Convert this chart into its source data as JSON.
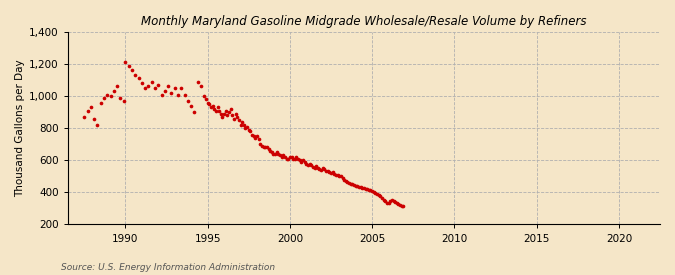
{
  "title": "Monthly Maryland Gasoline Midgrade Wholesale/Resale Volume by Refiners",
  "ylabel": "Thousand Gallons per Day",
  "source": "Source: U.S. Energy Information Administration",
  "background_color": "#f5e6c8",
  "dot_color": "#cc0000",
  "ylim": [
    200,
    1400
  ],
  "yticks": [
    200,
    400,
    600,
    800,
    1000,
    1200,
    1400
  ],
  "xlim": [
    1986.5,
    2022.5
  ],
  "xticks": [
    1990,
    1995,
    2000,
    2005,
    2010,
    2015,
    2020
  ],
  "dot_size": 7,
  "data": [
    [
      1987.5,
      870
    ],
    [
      1987.7,
      910
    ],
    [
      1987.9,
      930
    ],
    [
      1988.1,
      860
    ],
    [
      1988.3,
      820
    ],
    [
      1988.5,
      960
    ],
    [
      1988.7,
      990
    ],
    [
      1988.9,
      1010
    ],
    [
      1989.1,
      1000
    ],
    [
      1989.3,
      1030
    ],
    [
      1989.5,
      1060
    ],
    [
      1989.7,
      990
    ],
    [
      1989.9,
      970
    ],
    [
      1990.0,
      1210
    ],
    [
      1990.2,
      1190
    ],
    [
      1990.4,
      1160
    ],
    [
      1990.6,
      1130
    ],
    [
      1990.8,
      1110
    ],
    [
      1991.0,
      1080
    ],
    [
      1991.2,
      1050
    ],
    [
      1991.4,
      1060
    ],
    [
      1991.6,
      1090
    ],
    [
      1991.8,
      1050
    ],
    [
      1992.0,
      1070
    ],
    [
      1992.2,
      1010
    ],
    [
      1992.4,
      1030
    ],
    [
      1992.6,
      1060
    ],
    [
      1992.8,
      1020
    ],
    [
      1993.0,
      1050
    ],
    [
      1993.2,
      1010
    ],
    [
      1993.4,
      1050
    ],
    [
      1993.6,
      1010
    ],
    [
      1993.8,
      970
    ],
    [
      1994.0,
      940
    ],
    [
      1994.2,
      900
    ],
    [
      1994.4,
      1090
    ],
    [
      1994.6,
      1060
    ],
    [
      1994.8,
      1000
    ],
    [
      1994.9,
      980
    ],
    [
      1995.0,
      960
    ],
    [
      1995.1,
      950
    ],
    [
      1995.2,
      930
    ],
    [
      1995.3,
      940
    ],
    [
      1995.4,
      920
    ],
    [
      1995.5,
      910
    ],
    [
      1995.6,
      930
    ],
    [
      1995.7,
      910
    ],
    [
      1995.8,
      890
    ],
    [
      1995.9,
      870
    ],
    [
      1996.0,
      890
    ],
    [
      1996.1,
      910
    ],
    [
      1996.2,
      880
    ],
    [
      1996.3,
      900
    ],
    [
      1996.4,
      920
    ],
    [
      1996.5,
      880
    ],
    [
      1996.6,
      860
    ],
    [
      1996.7,
      890
    ],
    [
      1996.8,
      870
    ],
    [
      1996.9,
      850
    ],
    [
      1997.0,
      820
    ],
    [
      1997.1,
      840
    ],
    [
      1997.2,
      820
    ],
    [
      1997.3,
      800
    ],
    [
      1997.4,
      810
    ],
    [
      1997.5,
      790
    ],
    [
      1997.6,
      780
    ],
    [
      1997.7,
      760
    ],
    [
      1997.8,
      750
    ],
    [
      1997.9,
      740
    ],
    [
      1998.0,
      750
    ],
    [
      1998.1,
      730
    ],
    [
      1998.2,
      700
    ],
    [
      1998.3,
      690
    ],
    [
      1998.4,
      680
    ],
    [
      1998.5,
      680
    ],
    [
      1998.6,
      680
    ],
    [
      1998.7,
      670
    ],
    [
      1998.8,
      660
    ],
    [
      1998.9,
      650
    ],
    [
      1999.0,
      640
    ],
    [
      1999.1,
      640
    ],
    [
      1999.2,
      650
    ],
    [
      1999.3,
      640
    ],
    [
      1999.4,
      630
    ],
    [
      1999.5,
      620
    ],
    [
      1999.6,
      630
    ],
    [
      1999.7,
      620
    ],
    [
      1999.8,
      610
    ],
    [
      1999.9,
      610
    ],
    [
      2000.0,
      620
    ],
    [
      2000.1,
      620
    ],
    [
      2000.2,
      610
    ],
    [
      2000.3,
      610
    ],
    [
      2000.4,
      620
    ],
    [
      2000.5,
      610
    ],
    [
      2000.6,
      600
    ],
    [
      2000.7,
      590
    ],
    [
      2000.8,
      600
    ],
    [
      2000.9,
      590
    ],
    [
      2001.0,
      580
    ],
    [
      2001.1,
      570
    ],
    [
      2001.2,
      580
    ],
    [
      2001.3,
      570
    ],
    [
      2001.4,
      560
    ],
    [
      2001.5,
      555
    ],
    [
      2001.6,
      565
    ],
    [
      2001.7,
      555
    ],
    [
      2001.8,
      545
    ],
    [
      2001.9,
      540
    ],
    [
      2002.0,
      555
    ],
    [
      2002.1,
      545
    ],
    [
      2002.2,
      535
    ],
    [
      2002.3,
      535
    ],
    [
      2002.4,
      525
    ],
    [
      2002.5,
      520
    ],
    [
      2002.6,
      525
    ],
    [
      2002.7,
      515
    ],
    [
      2002.8,
      510
    ],
    [
      2002.9,
      510
    ],
    [
      2003.0,
      500
    ],
    [
      2003.1,
      500
    ],
    [
      2003.2,
      490
    ],
    [
      2003.3,
      480
    ],
    [
      2003.4,
      470
    ],
    [
      2003.5,
      465
    ],
    [
      2003.6,
      460
    ],
    [
      2003.7,
      455
    ],
    [
      2003.8,
      450
    ],
    [
      2003.9,
      445
    ],
    [
      2004.0,
      440
    ],
    [
      2004.1,
      438
    ],
    [
      2004.2,
      435
    ],
    [
      2004.3,
      432
    ],
    [
      2004.4,
      428
    ],
    [
      2004.5,
      425
    ],
    [
      2004.6,
      422
    ],
    [
      2004.7,
      418
    ],
    [
      2004.8,
      416
    ],
    [
      2004.9,
      413
    ],
    [
      2005.0,
      408
    ],
    [
      2005.1,
      403
    ],
    [
      2005.2,
      398
    ],
    [
      2005.3,
      390
    ],
    [
      2005.4,
      383
    ],
    [
      2005.5,
      375
    ],
    [
      2005.6,
      365
    ],
    [
      2005.7,
      355
    ],
    [
      2005.8,
      345
    ],
    [
      2005.9,
      335
    ],
    [
      2006.0,
      335
    ],
    [
      2006.1,
      345
    ],
    [
      2006.2,
      355
    ],
    [
      2006.3,
      345
    ],
    [
      2006.4,
      340
    ],
    [
      2006.5,
      335
    ],
    [
      2006.6,
      328
    ],
    [
      2006.7,
      322
    ],
    [
      2006.8,
      318
    ],
    [
      2006.9,
      313
    ]
  ]
}
